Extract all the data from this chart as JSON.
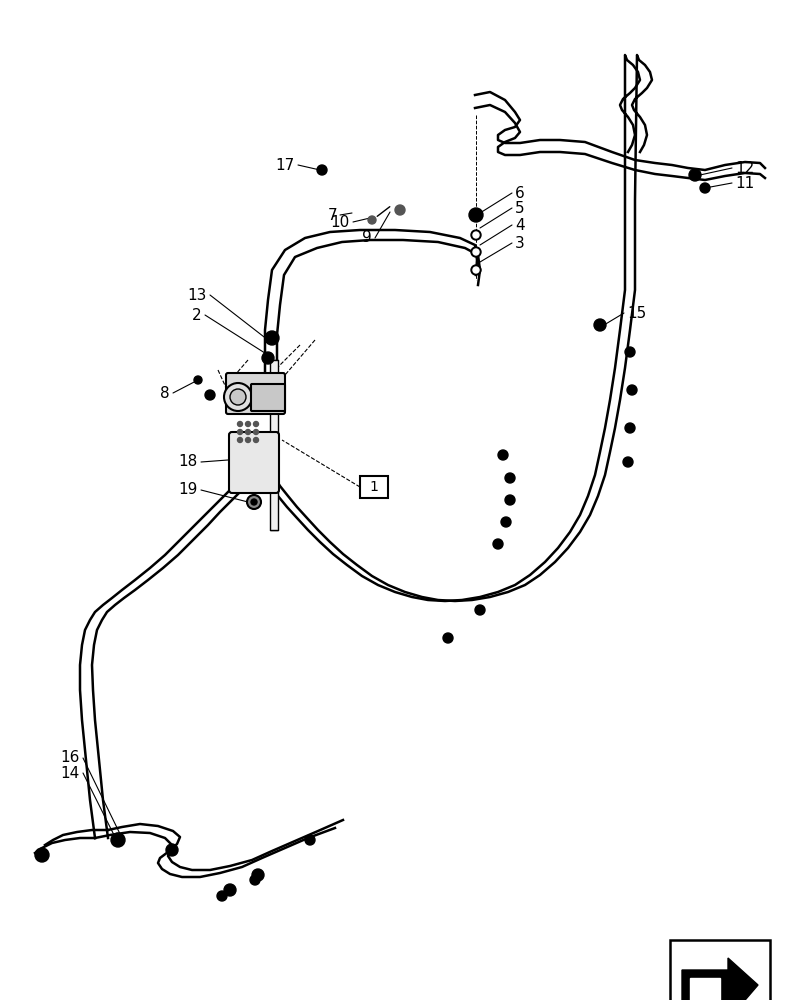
{
  "bg_color": "#ffffff",
  "lw": 1.8,
  "lw_thin": 0.9,
  "figsize": [
    8.12,
    10.0
  ],
  "dpi": 100
}
